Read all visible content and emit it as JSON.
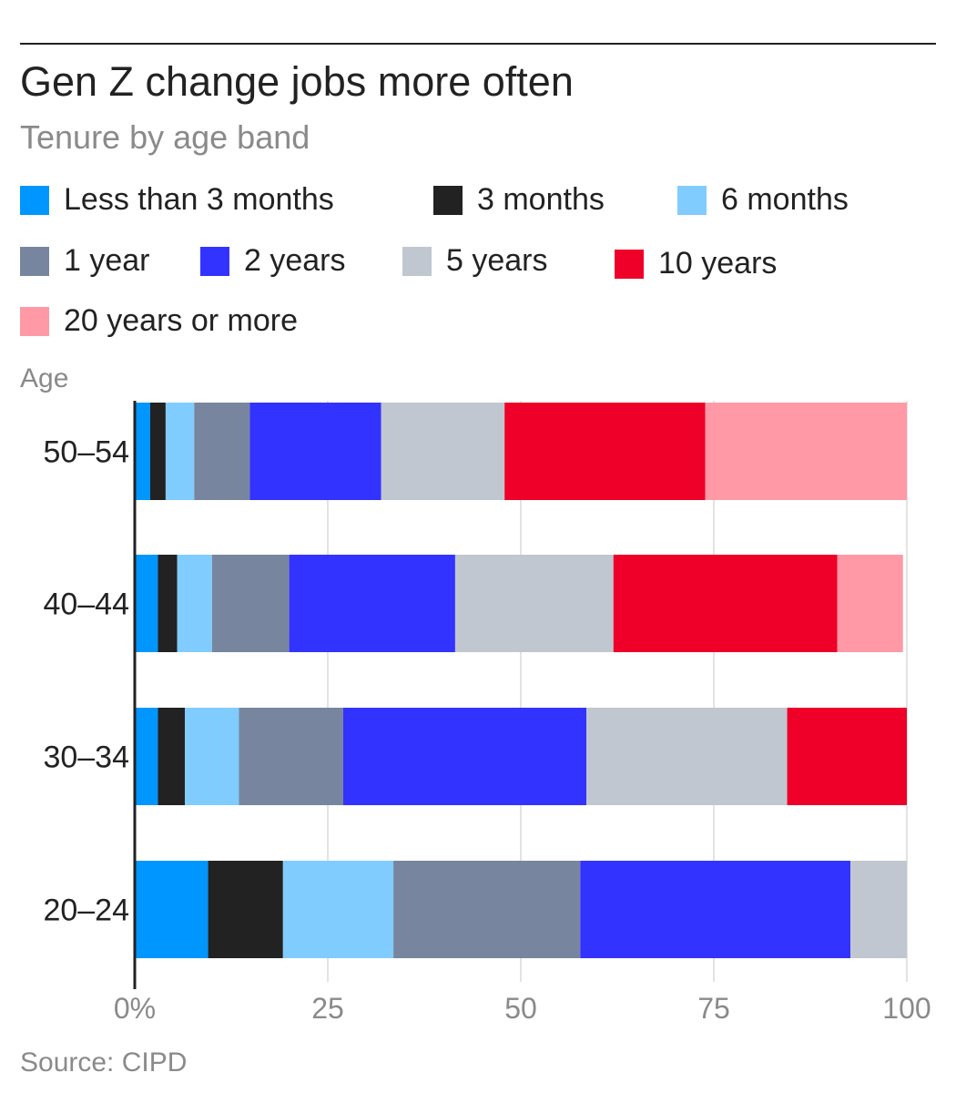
{
  "header": {
    "title": "Gen Z change jobs more often",
    "subtitle": "Tenure by age band"
  },
  "source": "Source: CIPD",
  "chart_data": {
    "type": "bar",
    "orientation": "horizontal",
    "stacked": true,
    "title": "Gen Z change jobs more often",
    "subtitle": "Tenure by age band",
    "ylabel": "Age",
    "xlabel": "",
    "xlim": [
      0,
      100
    ],
    "x_ticks": [
      "0%",
      "25",
      "50",
      "75",
      "100"
    ],
    "grid": true,
    "legend_position": "top",
    "categories": [
      "50–54",
      "40–44",
      "30–34",
      "20–24"
    ],
    "series": [
      {
        "name": "Less than 3 months",
        "color": "#0096ff",
        "values": [
          2,
          3,
          3,
          9.5
        ]
      },
      {
        "name": "3 months",
        "color": "#222222",
        "values": [
          2,
          2.5,
          3.5,
          9.7
        ]
      },
      {
        "name": "6 months",
        "color": "#80ccff",
        "values": [
          3.7,
          4.5,
          7,
          14.3
        ]
      },
      {
        "name": "1 year",
        "color": "#77869e",
        "values": [
          7.2,
          10,
          13.5,
          24.2
        ]
      },
      {
        "name": "2 years",
        "color": "#3333ff",
        "values": [
          17,
          21.5,
          31.5,
          35
        ]
      },
      {
        "name": "5 years",
        "color": "#c1c7d0",
        "values": [
          16,
          20.5,
          26,
          7.3
        ]
      },
      {
        "name": "10 years",
        "color": "#ee0028",
        "values": [
          26,
          29,
          15.5,
          0
        ]
      },
      {
        "name": "20 years or more",
        "color": "#ff99a6",
        "values": [
          26.1,
          8.5,
          0,
          0
        ]
      }
    ]
  }
}
